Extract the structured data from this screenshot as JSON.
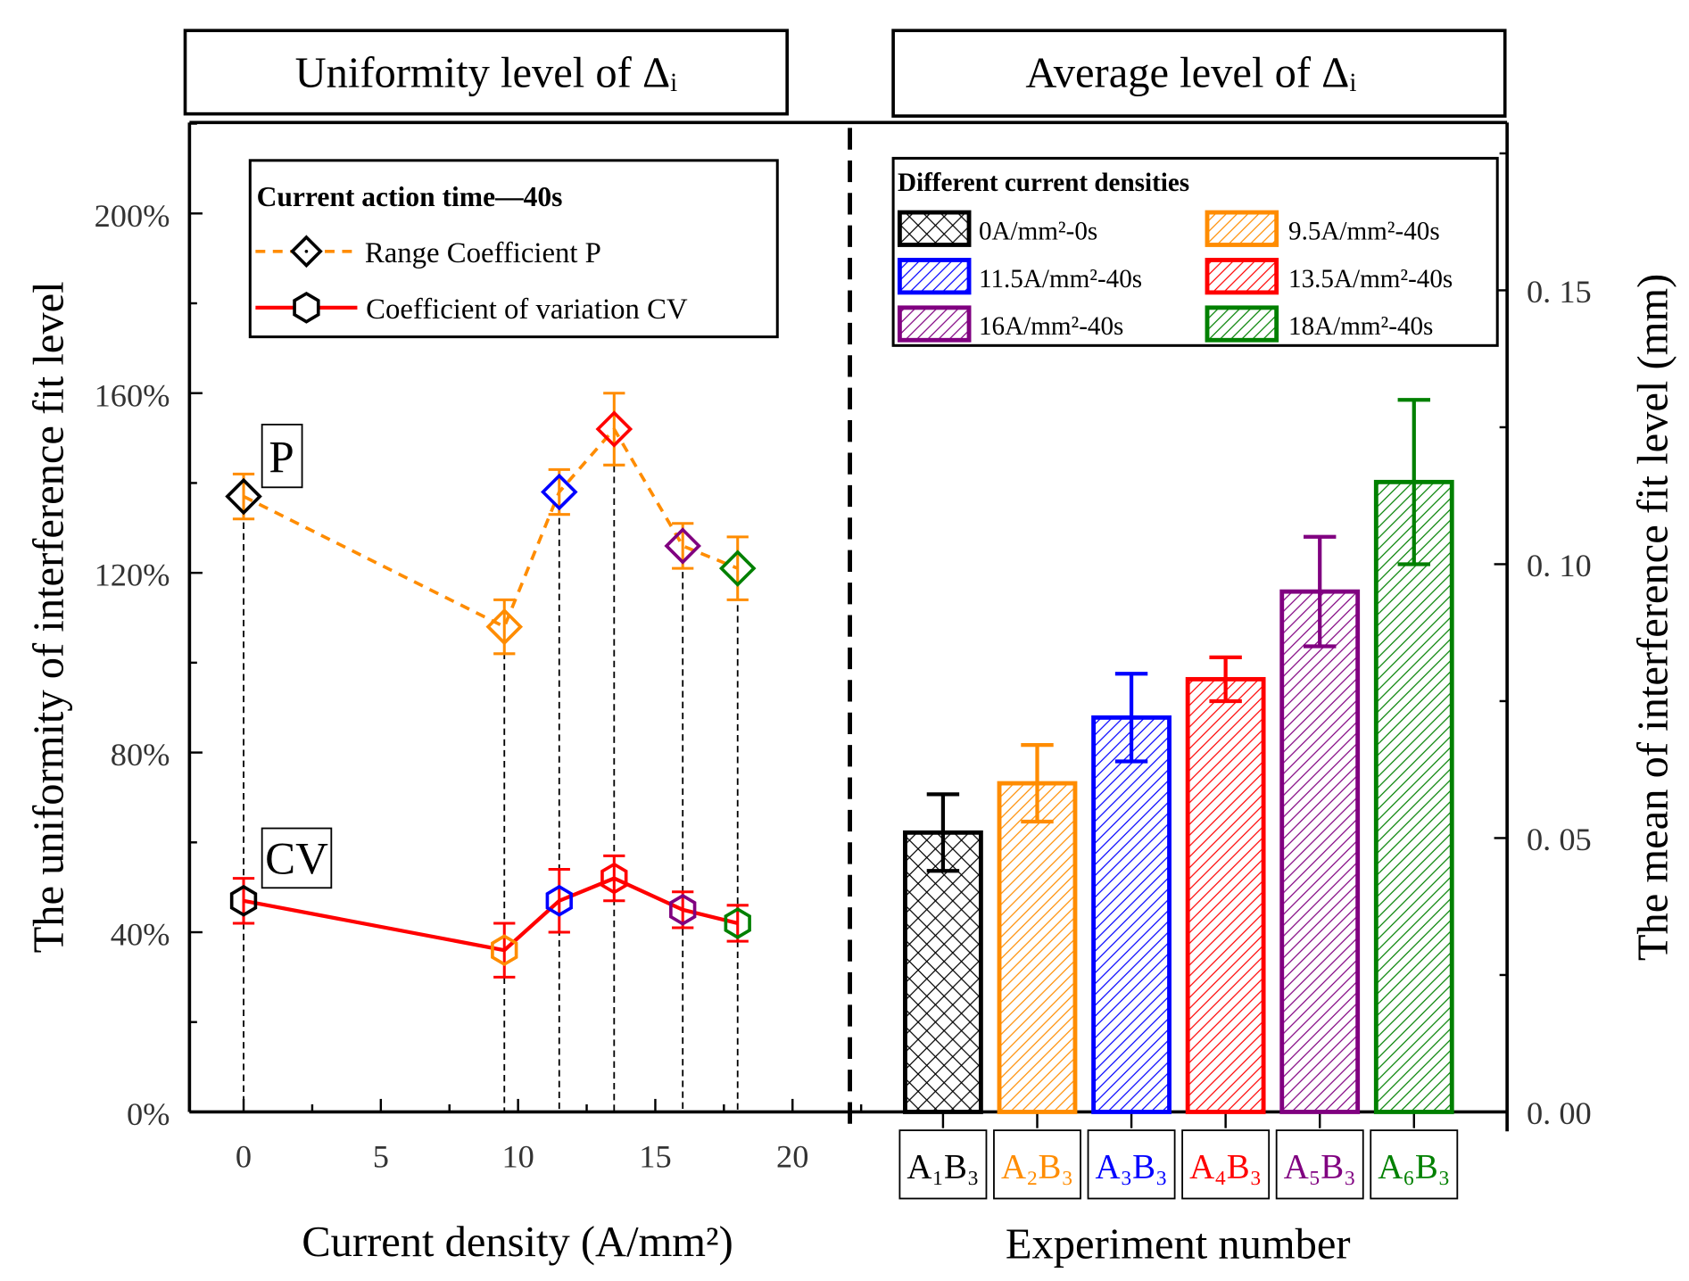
{
  "chart_data": [
    {
      "type": "line",
      "title": "Uniformity level of Δᵢ",
      "xlabel": "Current density (A/mm²)",
      "ylabel": "The uniformity of interference fit level",
      "xlim": [
        -2,
        22
      ],
      "ylim": [
        0,
        220
      ],
      "xticks": [
        "0",
        "5",
        "10",
        "15",
        "20"
      ],
      "xtick_values": [
        0,
        5,
        10,
        15,
        20
      ],
      "yticks": [
        "0%",
        "40%",
        "80%",
        "120%",
        "160%",
        "200%"
      ],
      "ytick_values": [
        0,
        40,
        80,
        120,
        160,
        200
      ],
      "x": [
        0,
        9.5,
        11.5,
        13.5,
        16,
        18
      ],
      "point_colors": [
        "#000000",
        "#ff8c00",
        "#0000ff",
        "#ff0000",
        "#800080",
        "#008000"
      ],
      "series": [
        {
          "name": "Range Coefficient P",
          "tag": "P",
          "line_color": "#ff8c00",
          "err_color": "#ff8c00",
          "marker": "diamond",
          "style": "dashed",
          "values": [
            137,
            108,
            138,
            152,
            126,
            121
          ],
          "errors": [
            5,
            6,
            5,
            8,
            5,
            7
          ]
        },
        {
          "name": "Coefficient of variation CV",
          "tag": "CV",
          "line_color": "#ff0000",
          "err_color": "#ff0000",
          "marker": "hexagon",
          "style": "solid",
          "values": [
            47,
            36,
            47,
            52,
            45,
            42
          ],
          "errors": [
            5,
            6,
            7,
            5,
            4,
            4
          ]
        }
      ],
      "legend": {
        "title": "Current action time—40s",
        "placement": "top"
      },
      "grid": false
    },
    {
      "type": "bar",
      "title": "Average level of Δᵢ",
      "xlabel": "Experiment number",
      "ylabel": "The mean of interference fit level (mm)",
      "ylim": [
        0,
        0.17
      ],
      "yticks": [
        "0. 00",
        "0. 05",
        "0. 10",
        "0. 15"
      ],
      "ytick_values": [
        0,
        0.05,
        0.1,
        0.15
      ],
      "categories": [
        "A₁B₃",
        "A₂B₃",
        "A₃B₃",
        "A₄B₃",
        "A₅B₃",
        "A₆B₃"
      ],
      "values": [
        0.051,
        0.06,
        0.072,
        0.079,
        0.095,
        0.115
      ],
      "errors": [
        0.007,
        0.007,
        0.008,
        0.004,
        0.01,
        0.015
      ],
      "colors": [
        "#000000",
        "#ff8c00",
        "#0000ff",
        "#ff0000",
        "#800080",
        "#008000"
      ],
      "legend": {
        "title": "Different current densities",
        "placement": "top",
        "entries": [
          "0A/mm²-0s",
          "9.5A/mm²-40s",
          "11.5A/mm²-40s",
          "13.5A/mm²-40s",
          "16A/mm²-40s",
          "18A/mm²-40s"
        ]
      },
      "grid": false
    }
  ]
}
